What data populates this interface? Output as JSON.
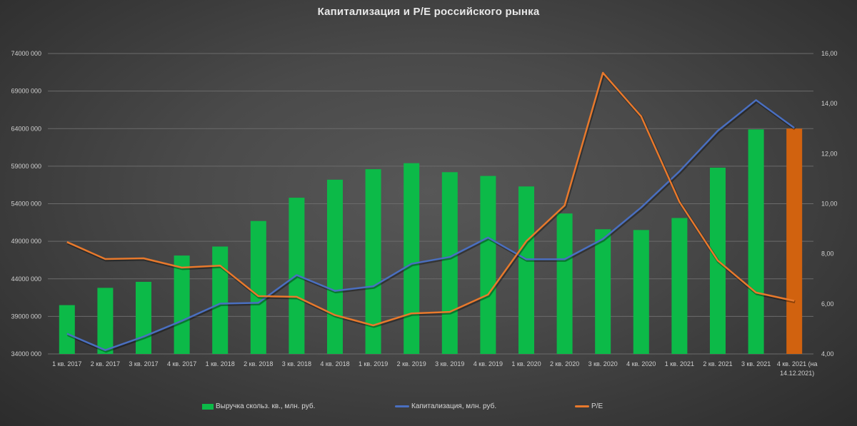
{
  "chart_data": {
    "type": "bar+line",
    "title": "Капитализация и P/E российского рынка",
    "categories": [
      "1 кв. 2017",
      "2 кв. 2017",
      "3 кв. 2017",
      "4 кв. 2017",
      "1 кв. 2018",
      "2 кв. 2018",
      "3 кв. 2018",
      "4 кв. 2018",
      "1 кв. 2019",
      "2 кв. 2019",
      "3 кв. 2019",
      "4 кв. 2019",
      "1 кв. 2020",
      "2 кв. 2020",
      "3 кв. 2020",
      "4 кв. 2020",
      "1 кв. 2021",
      "2 кв. 2021",
      "3 кв. 2021",
      "4 кв. 2021 (на 14.12.2021)"
    ],
    "series": [
      {
        "name": "Выручка скольз. кв., млн. руб.",
        "type": "bar",
        "axis": "left",
        "color": "#0cba48",
        "highlight_last_color": "#d1620f",
        "values": [
          40500000,
          42800000,
          43600000,
          47100000,
          48300000,
          51700000,
          54800000,
          57200000,
          58600000,
          59400000,
          58200000,
          57700000,
          56300000,
          52700000,
          50600000,
          50500000,
          52100000,
          58800000,
          63900000,
          64000000
        ]
      },
      {
        "name": "Капитализация, млн. руб.",
        "type": "line",
        "axis": "left",
        "color": "#4a6fc0",
        "values": [
          36700000,
          34500000,
          36300000,
          38400000,
          40700000,
          40800000,
          44500000,
          42400000,
          43000000,
          46000000,
          46900000,
          49500000,
          46600000,
          46600000,
          49300000,
          53500000,
          58300000,
          63700000,
          67800000,
          64100000
        ]
      },
      {
        "name": "P/E",
        "type": "line",
        "axis": "right",
        "color": "#e8792c",
        "values": [
          8.47,
          7.79,
          7.82,
          7.45,
          7.53,
          6.31,
          6.28,
          5.55,
          5.14,
          5.62,
          5.68,
          6.37,
          8.5,
          9.93,
          15.23,
          13.49,
          10.07,
          7.73,
          6.45,
          6.12
        ]
      }
    ],
    "y_left": {
      "min": 34000000,
      "max": 74000000,
      "step": 5000000,
      "ticks": [
        "34000 000",
        "39000 000",
        "44000 000",
        "49000 000",
        "54000 000",
        "59000 000",
        "64000 000",
        "69000 000",
        "74000 000"
      ]
    },
    "y_right": {
      "min": 4,
      "max": 16,
      "step": 2,
      "ticks": [
        "4,00",
        "6,00",
        "8,00",
        "10,00",
        "12,00",
        "14,00",
        "16,00"
      ]
    },
    "xlabel": "",
    "ylabel": "",
    "grid": true,
    "legend_position": "bottom"
  },
  "legend": {
    "revenue": "Выручка скольз. кв., млн. руб.",
    "cap": "Капитализация, млн. руб.",
    "pe": "P/E"
  }
}
